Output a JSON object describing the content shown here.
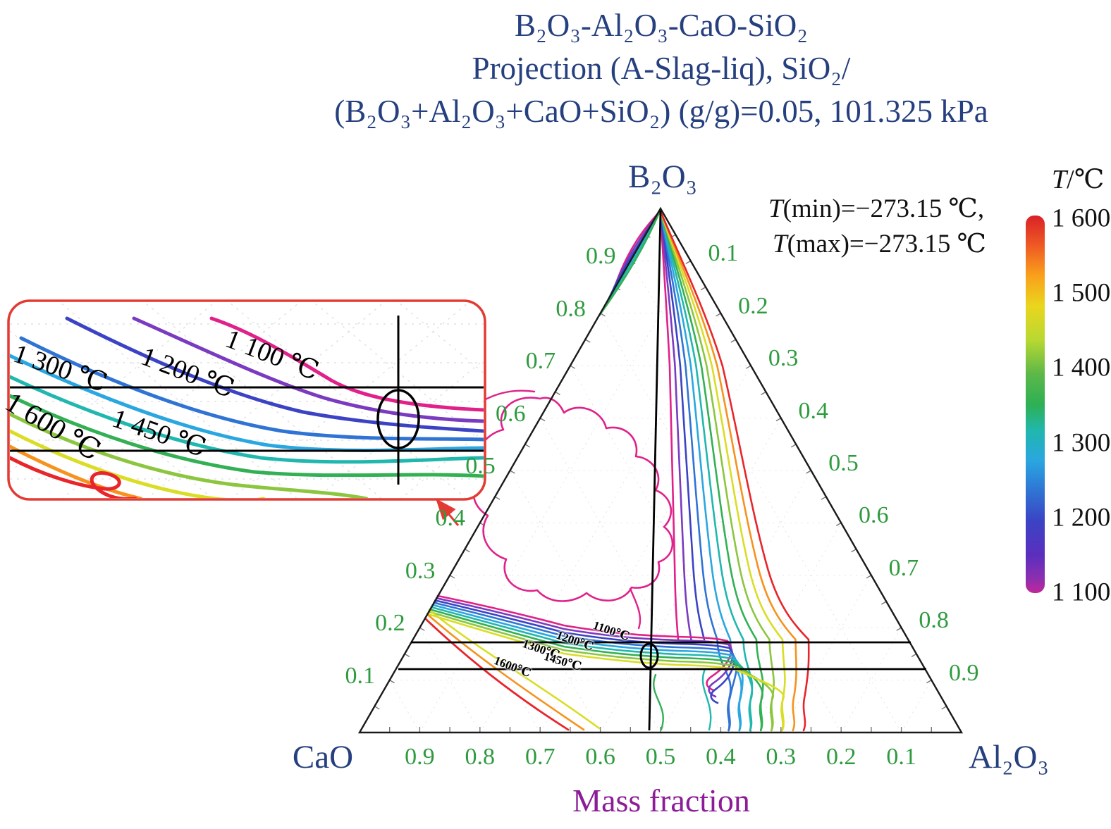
{
  "palette": {
    "title": "#26407f",
    "tick_green": "#2e9b3e",
    "mass_purple": "#8c1c97",
    "inset_border": "#e23b33",
    "line_black": "#1a1a1a"
  },
  "figure": {
    "title_lines": [
      "B₂O₃-Al₂O₃-CaO-SiO₂",
      "Projection (A-Slag-liq), SiO₂/",
      "(B₂O₃+Al₂O₃+CaO+SiO₂) (g/g)=0.05, 101.325 kPa"
    ]
  },
  "vertices": {
    "top": "B₂O₃",
    "bottom_left": "CaO",
    "bottom_right": "Al₂O₃"
  },
  "axes": {
    "left_ticks": [
      "0.9",
      "0.8",
      "0.7",
      "0.6",
      "0.5",
      "0.4",
      "0.3",
      "0.2",
      "0.1"
    ],
    "right_ticks": [
      "0.1",
      "0.2",
      "0.3",
      "0.4",
      "0.5",
      "0.6",
      "0.7",
      "0.8",
      "0.9"
    ],
    "bottom_ticks": [
      "0.9",
      "0.8",
      "0.7",
      "0.6",
      "0.5",
      "0.4",
      "0.3",
      "0.2",
      "0.1"
    ],
    "bottom_label": "Mass fraction"
  },
  "annotation": {
    "tmin_italic": "T",
    "tmin_text": "(min)=−273.15 ℃,",
    "tmax_italic": "T",
    "tmax_text": "(max)=−273.15 ℃"
  },
  "colorbar": {
    "label_italic": "T",
    "label_text": "/℃",
    "tick_labels": [
      "1 600",
      "1 500",
      "1 400",
      "1 300",
      "1 200",
      "1 100"
    ]
  },
  "contours": {
    "levels": [
      {
        "t": 1100,
        "color": "#e0218a"
      },
      {
        "t": 1150,
        "color": "#7a3bc0"
      },
      {
        "t": 1200,
        "color": "#3b43c4"
      },
      {
        "t": 1250,
        "color": "#2f74d4"
      },
      {
        "t": 1300,
        "color": "#2aa6e0"
      },
      {
        "t": 1350,
        "color": "#20b7ae"
      },
      {
        "t": 1400,
        "color": "#33b054"
      },
      {
        "t": 1450,
        "color": "#8cc63f"
      },
      {
        "t": 1500,
        "color": "#dadd25"
      },
      {
        "t": 1550,
        "color": "#f6921e"
      },
      {
        "t": 1600,
        "color": "#e8252a"
      }
    ]
  },
  "plot_labels": [
    {
      "text": "1100℃"
    },
    {
      "text": "1200℃"
    },
    {
      "text": "1300℃"
    },
    {
      "text": "1450℃"
    },
    {
      "text": "1600℃"
    }
  ],
  "inset": {
    "labels": [
      {
        "text": "1 100 ℃"
      },
      {
        "text": "1 200 ℃"
      },
      {
        "text": "1 300 ℃"
      },
      {
        "text": "1 450 ℃"
      },
      {
        "text": "1 600 ℃"
      }
    ]
  },
  "chart_data": {
    "type": "heatmap",
    "subtype": "ternary-liquidus-contour-projection",
    "title": "B₂O₃-Al₂O₃-CaO-SiO₂ Projection (A-Slag-liq), SiO₂/(B₂O₃+Al₂O₃+CaO+SiO₂) (g/g)=0.05, 101.325 kPa",
    "components": {
      "top": "B₂O₃",
      "bottom_left": "CaO",
      "bottom_right": "Al₂O₃"
    },
    "axis_label": "Mass fraction",
    "axis_range": [
      0,
      1
    ],
    "tick_step": 0.1,
    "contour_levels_c": [
      1100,
      1150,
      1200,
      1250,
      1300,
      1350,
      1400,
      1450,
      1500,
      1550,
      1600
    ],
    "labeled_levels_main_c": [
      1100,
      1200,
      1300,
      1450,
      1600
    ],
    "labeled_levels_inset_c": [
      1100,
      1200,
      1300,
      1450,
      1600
    ],
    "colorbar": {
      "label": "T/℃",
      "min": 1100,
      "max": 1600,
      "ticks": [
        1600,
        1500,
        1400,
        1300,
        1200,
        1100
      ]
    },
    "annotations": [
      "T(min)=−273.15 ℃,",
      "T(max)=−273.15 ℃"
    ],
    "conditions": {
      "sio2_mass_ratio_gg": 0.05,
      "pressure_kpa": 101.325
    },
    "legend_position": "right",
    "grid": "faint-dashed-ternary"
  }
}
